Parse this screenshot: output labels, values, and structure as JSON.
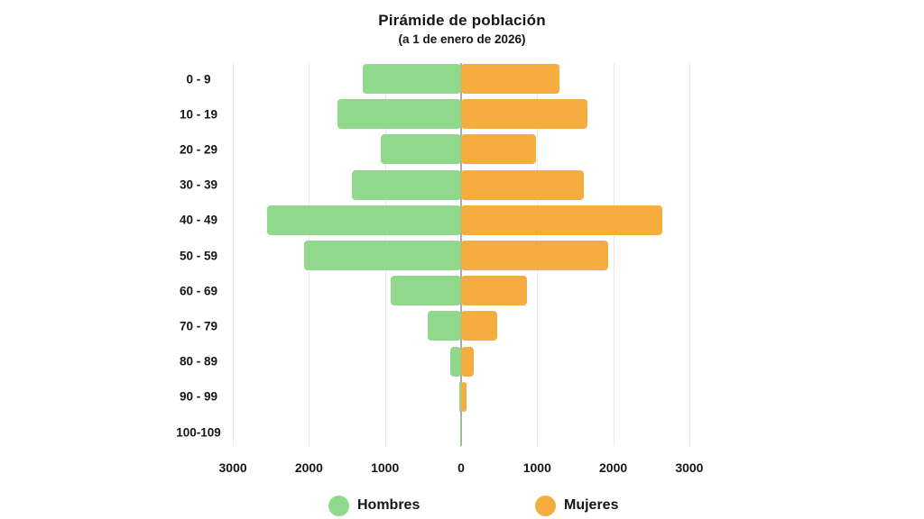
{
  "chart": {
    "title": "Pirámide de población",
    "subtitle": "(a 1 de enero de 2026)"
  },
  "chart_data": {
    "type": "bar",
    "variant": "population-pyramid",
    "title": "Pirámide de población",
    "subtitle": "(a 1 de enero de 2026)",
    "categories": [
      "0 - 9",
      "10 - 19",
      "20 - 29",
      "30 - 39",
      "40 - 49",
      "50 - 59",
      "60 - 69",
      "70 - 79",
      "80 - 89",
      "90 - 99",
      "100-109"
    ],
    "series": [
      {
        "name": "Hombres",
        "side": "left",
        "color": "#90d98c",
        "values": [
          1290,
          1620,
          1060,
          1430,
          2550,
          2060,
          930,
          440,
          140,
          25,
          15
        ]
      },
      {
        "name": "Mujeres",
        "side": "right",
        "color": "#f5ad40",
        "values": [
          1290,
          1660,
          980,
          1610,
          2640,
          1930,
          870,
          470,
          170,
          70,
          0
        ]
      }
    ],
    "x_ticks": [
      "3000",
      "2000",
      "1000",
      "0",
      "1000",
      "2000",
      "3000"
    ],
    "xlim": [
      -3000,
      3000
    ],
    "grid": true,
    "legend_position": "bottom"
  },
  "legend": {
    "items": [
      {
        "label": "Hombres",
        "color": "#90d98c"
      },
      {
        "label": "Mujeres",
        "color": "#f5ad40"
      }
    ]
  },
  "colors": {
    "gridline": "#e9e9e9",
    "center_axis": "#ababab",
    "text": "#161616",
    "background": "#ffffff"
  }
}
